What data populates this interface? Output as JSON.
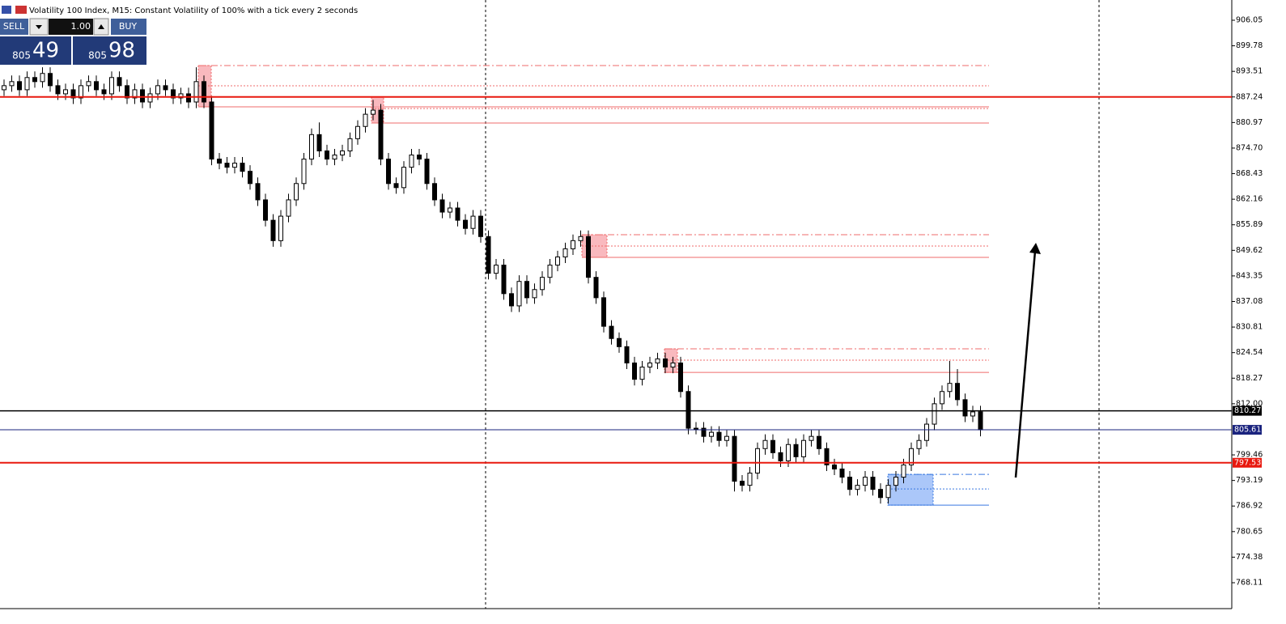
{
  "chart_data": {
    "type": "candlestick",
    "title": "Volatility 100 Index, M15:  Constant Volatility of 100% with a tick every 2 seconds",
    "open": [
      889,
      890,
      891,
      889,
      892,
      891,
      893,
      890,
      888,
      889,
      887,
      890,
      891,
      889,
      888,
      892,
      890,
      887,
      889,
      886,
      888,
      890,
      889,
      887,
      888,
      886,
      891,
      886,
      872,
      871,
      870,
      871,
      869,
      866,
      862,
      857,
      852,
      858,
      862,
      866,
      872,
      878,
      874,
      872,
      873,
      874,
      877,
      880,
      883,
      884,
      872,
      866,
      865,
      870,
      873,
      872,
      866,
      862,
      859,
      860,
      857,
      855,
      858,
      853,
      844,
      846,
      839,
      836,
      842,
      838,
      840,
      843,
      846,
      848,
      850,
      852,
      853,
      843,
      838,
      831,
      828,
      826,
      822,
      818,
      821,
      822,
      823,
      821,
      822,
      815,
      806,
      806,
      804,
      805,
      803,
      804,
      793,
      792,
      795,
      801,
      803,
      800,
      798,
      802,
      799,
      803,
      804,
      801,
      797,
      796,
      794,
      791,
      792,
      794,
      791,
      789,
      792,
      794,
      797,
      801,
      803,
      807,
      812,
      815,
      817,
      813,
      809,
      810
    ],
    "high": [
      891.5,
      892.5,
      892.5,
      893.5,
      893.5,
      894.5,
      894.5,
      891.5,
      890.5,
      890.5,
      891.5,
      892.5,
      892.5,
      890.5,
      893.5,
      893.5,
      891.5,
      890.5,
      890.5,
      889.5,
      891.5,
      891.5,
      890.5,
      889.5,
      889.5,
      894.5,
      892.5,
      887.5,
      873.5,
      872.5,
      872.5,
      872.5,
      870.5,
      867.5,
      863.5,
      858.5,
      859.5,
      863.5,
      867.5,
      873.5,
      879.5,
      881,
      875.5,
      874.5,
      875.5,
      878.5,
      881.5,
      884.5,
      886.5,
      885.5,
      873.5,
      867.5,
      871.5,
      874.5,
      874.5,
      873.5,
      867.5,
      863.5,
      861.5,
      861.5,
      858.5,
      859.5,
      859.5,
      854.5,
      847.5,
      847.5,
      840.5,
      843.5,
      843.5,
      841.5,
      844.5,
      847.5,
      849.5,
      851.5,
      853.5,
      854.5,
      854.5,
      844.5,
      839.5,
      832.5,
      829.5,
      827.5,
      823.5,
      822.5,
      823.5,
      824.5,
      824.5,
      823.5,
      823.5,
      816.5,
      807.5,
      807.5,
      806.5,
      806.5,
      805.5,
      805.5,
      794.5,
      796.5,
      802.5,
      804.5,
      804.5,
      801.5,
      803.5,
      803.5,
      804.5,
      805.5,
      805.5,
      802.5,
      798.5,
      797.5,
      795.5,
      793.5,
      795.5,
      795.5,
      792.5,
      793.5,
      795.5,
      798.5,
      802.5,
      804.5,
      808.5,
      813.5,
      816.5,
      822.5,
      820.5,
      814.5,
      811.5,
      811.5
    ],
    "low": [
      887.5,
      888.5,
      887.5,
      887.5,
      889.5,
      889.5,
      888.5,
      886.5,
      886.5,
      885.5,
      885.5,
      888.5,
      887.5,
      886.5,
      886.5,
      888.5,
      885.5,
      885.5,
      884.5,
      884.5,
      886.5,
      887.5,
      885.5,
      885.5,
      884.5,
      884.5,
      884.5,
      870.5,
      869.5,
      868.5,
      868.5,
      867.5,
      864.5,
      860.5,
      855.5,
      850.5,
      850.5,
      856.5,
      860.5,
      864.5,
      870.5,
      872.5,
      870.5,
      870.5,
      871.5,
      872.5,
      875.5,
      878.5,
      881.5,
      870.5,
      864.5,
      863.5,
      863.5,
      868.5,
      870.5,
      864.5,
      860.5,
      857.5,
      857.5,
      855.5,
      853.5,
      853.5,
      851.5,
      842.5,
      842.5,
      837.5,
      834.5,
      834.5,
      836.5,
      836.5,
      838.5,
      841.5,
      844.5,
      846.5,
      848.5,
      850.5,
      841.5,
      836.5,
      829.5,
      826.5,
      824.5,
      820.5,
      816.5,
      816.5,
      819.5,
      820.5,
      819.5,
      819.5,
      813.5,
      804.5,
      804.5,
      802.5,
      802.5,
      801.5,
      801.5,
      790.5,
      790.5,
      790.5,
      793.5,
      799.5,
      798.5,
      796.5,
      796.5,
      797.5,
      797.5,
      801.5,
      799.5,
      795.5,
      794.5,
      792.5,
      789.5,
      789.5,
      790.5,
      789.5,
      787.5,
      787.5,
      790.5,
      792.5,
      795.5,
      799.5,
      801.5,
      805.5,
      810.5,
      813.5,
      811.5,
      807.5,
      807.5,
      804
    ],
    "close": [
      890,
      891,
      889,
      892,
      891,
      893,
      890,
      888,
      889,
      887,
      890,
      891,
      889,
      888,
      892,
      890,
      887,
      889,
      886,
      888,
      890,
      889,
      887,
      888,
      886,
      891,
      886,
      872,
      871,
      870,
      871,
      869,
      866,
      862,
      857,
      852,
      858,
      862,
      866,
      872,
      878,
      874,
      872,
      873,
      874,
      877,
      880,
      883,
      884,
      872,
      866,
      865,
      870,
      873,
      872,
      866,
      862,
      859,
      860,
      857,
      855,
      858,
      853,
      844,
      846,
      839,
      836,
      842,
      838,
      840,
      843,
      846,
      848,
      850,
      852,
      853,
      843,
      838,
      831,
      828,
      826,
      822,
      818,
      821,
      822,
      823,
      821,
      822,
      815,
      806,
      806,
      804,
      805,
      803,
      804,
      793,
      792,
      795,
      801,
      803,
      800,
      798,
      802,
      799,
      803,
      804,
      801,
      797,
      796,
      794,
      791,
      792,
      794,
      791,
      789,
      792,
      794,
      797,
      801,
      803,
      807,
      812,
      815,
      817,
      813,
      809,
      810,
      805.61
    ],
    "ylim": [
      761.76,
      911.01
    ],
    "yticks": [
      906.05,
      899.78,
      893.51,
      887.24,
      880.97,
      {
        "value": 874.7,
        "label": "874.70"
      },
      868.43,
      862.16,
      855.89,
      849.62,
      843.35,
      837.08,
      830.81,
      824.54,
      818.27,
      {
        "value": 812,
        "label": "812.00"
      },
      799.46,
      793.19,
      786.92,
      780.65,
      774.38,
      768.11
    ],
    "levels": [
      {
        "value": 887.24,
        "color": "#e8190f",
        "labeled": false
      },
      {
        "value": 810.27,
        "color": "#000000",
        "labeled": true
      },
      {
        "value": 805.61,
        "color": "#1a237e",
        "labeled": true
      },
      {
        "value": 797.53,
        "color": "#e8190f",
        "labeled": true
      }
    ],
    "zones": [
      {
        "top": 894.94,
        "mid": 889.97,
        "bottom": 884.81,
        "color": "#f7a1a8",
        "line": "#ef6b6b"
      },
      {
        "top": 887.19,
        "mid": 884.4,
        "bottom": 880.84,
        "color": "#f7a1a8",
        "line": "#ef6b6b"
      },
      {
        "top": 853.45,
        "mid": 850.67,
        "bottom": 847.89,
        "color": "#f7a1a8",
        "line": "#ef6b6b"
      },
      {
        "top": 825.46,
        "mid": 822.68,
        "bottom": 819.7,
        "color": "#f7a1a8",
        "line": "#ef6b6b"
      },
      {
        "top": 794.69,
        "mid": 791.12,
        "bottom": 787.15,
        "color": "#8fb4f7",
        "line": "#3a78e0"
      }
    ]
  },
  "trade_panel": {
    "sell": "SELL",
    "lot": "1.00",
    "buy": "BUY",
    "bid_big": "805",
    "bid_small": "49",
    "ask_big": "805",
    "ask_small": "98"
  }
}
